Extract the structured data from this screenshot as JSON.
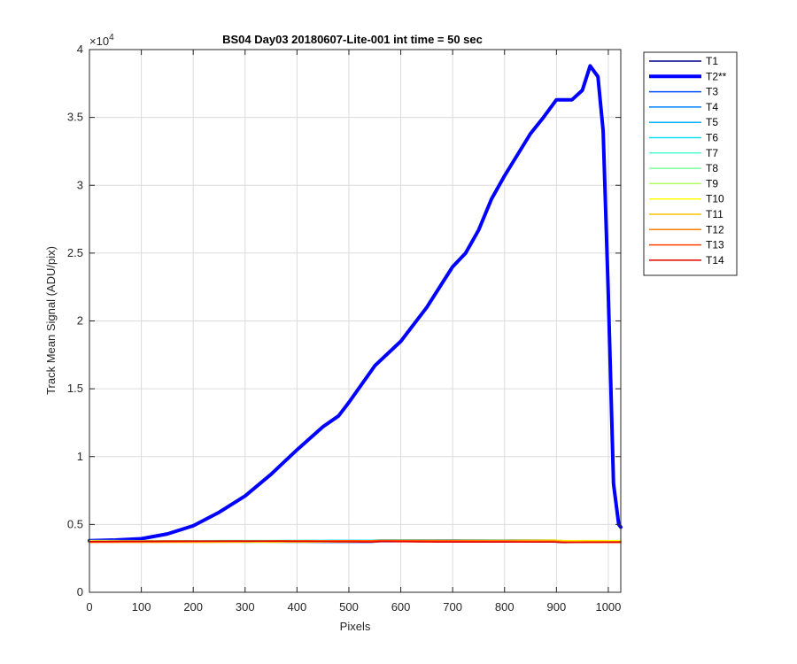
{
  "chart_data": {
    "type": "line",
    "title": "BS04 Day03 20180607-Lite-001 int time = 50 sec",
    "xlabel": "Pixels",
    "ylabel": "Track Mean Signal (ADU/pix)",
    "y_exponent_label": "×10",
    "y_exponent": "4",
    "xlim": [
      0,
      1024
    ],
    "ylim": [
      0,
      40000
    ],
    "xticks": [
      0,
      100,
      200,
      300,
      400,
      500,
      600,
      700,
      800,
      900,
      1000
    ],
    "yticks": [
      0,
      5000,
      10000,
      15000,
      20000,
      25000,
      30000,
      35000,
      40000
    ],
    "ytick_labels": [
      "0",
      "0.5",
      "1",
      "1.5",
      "2",
      "2.5",
      "3",
      "3.5",
      "4"
    ],
    "grid": true,
    "legend_position": "outside-right",
    "series": [
      {
        "name": "T1",
        "color": "#00008f",
        "width": 1.5,
        "flat": 3720
      },
      {
        "name": "T2**",
        "color": "#0000ff",
        "width": 4,
        "x": [
          0,
          50,
          100,
          150,
          200,
          250,
          300,
          350,
          400,
          450,
          480,
          500,
          550,
          600,
          650,
          700,
          725,
          750,
          775,
          800,
          850,
          875,
          900,
          930,
          950,
          965,
          980,
          990,
          1000,
          1010,
          1020,
          1024
        ],
        "y": [
          3800,
          3850,
          3950,
          4300,
          4900,
          5900,
          7100,
          8700,
          10500,
          12200,
          13000,
          14000,
          16700,
          18500,
          21000,
          24000,
          25000,
          26700,
          29000,
          30700,
          33800,
          35000,
          36300,
          36300,
          37000,
          38800,
          38000,
          34000,
          22000,
          8000,
          5000,
          4800
        ]
      },
      {
        "name": "T3",
        "color": "#0050ff",
        "width": 1.5,
        "flat": 3740
      },
      {
        "name": "T4",
        "color": "#0080ff",
        "width": 1.5,
        "flat": 3750
      },
      {
        "name": "T5",
        "color": "#00b0ff",
        "width": 1.5,
        "flat": 3760
      },
      {
        "name": "T6",
        "color": "#10e0ff",
        "width": 1.5,
        "flat": 3770
      },
      {
        "name": "T7",
        "color": "#50ffcf",
        "width": 1.5,
        "flat": 3760
      },
      {
        "name": "T8",
        "color": "#80ff9f",
        "width": 1.5,
        "flat": 3750
      },
      {
        "name": "T9",
        "color": "#b0ff60",
        "width": 1.5,
        "flat": 3760
      },
      {
        "name": "T10",
        "color": "#ffff00",
        "width": 1.5,
        "flat": 3750
      },
      {
        "name": "T11",
        "color": "#ffc000",
        "width": 1.5,
        "flat": 3740
      },
      {
        "name": "T12",
        "color": "#ff8000",
        "width": 1.5,
        "flat": 3740
      },
      {
        "name": "T13",
        "color": "#ff4000",
        "width": 1.5,
        "flat": 3730
      },
      {
        "name": "T14",
        "color": "#e00000",
        "width": 1.5,
        "flat": 3720
      }
    ]
  }
}
